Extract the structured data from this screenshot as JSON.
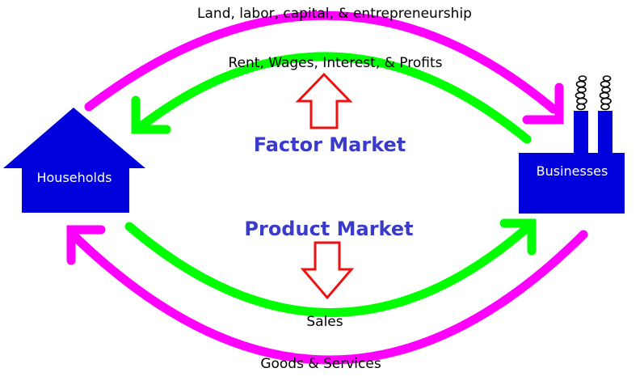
{
  "colors": {
    "accent_magenta": "#ff00ff",
    "accent_green": "#00ff00",
    "node_blue": "#0000dd",
    "market_text": "#3a3acb",
    "outline_arrow_red": "#ee1111",
    "smoke": "#000000"
  },
  "nodes": {
    "households": "Households",
    "businesses": "Businesses"
  },
  "markets": {
    "factor": "Factor Market",
    "product": "Product Market"
  },
  "flows": {
    "resources": "Land, labor, capital, & entrepreneurship",
    "income": "Rent, Wages, Interest, & Profits",
    "sales": "Sales",
    "goods": "Goods & Services"
  },
  "icons": {
    "households": "house-icon",
    "businesses": "factory-icon",
    "factor_direction": "up-outline-arrow-icon",
    "product_direction": "down-outline-arrow-icon"
  }
}
